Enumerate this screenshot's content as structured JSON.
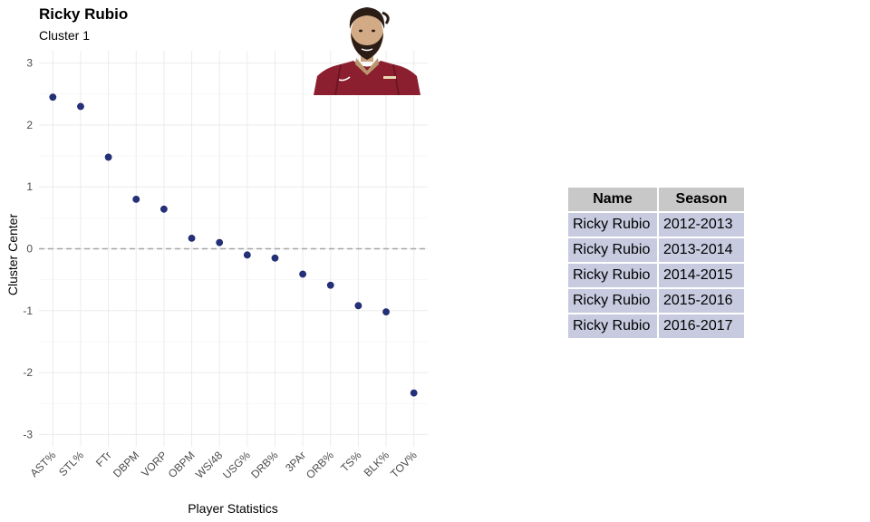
{
  "header": {
    "title": "Ricky Rubio",
    "subtitle": "Cluster 1"
  },
  "photo": {
    "icon": "player-headshot-icon",
    "jersey_color": "#8b1f2f"
  },
  "chart_data": {
    "type": "scatter",
    "categories": [
      "AST%",
      "STL%",
      "FTr",
      "DBPM",
      "VORP",
      "OBPM",
      "WS/48",
      "USG%",
      "DRB%",
      "3PAr",
      "ORB%",
      "TS%",
      "BLK%",
      "TOV%"
    ],
    "values": [
      2.45,
      2.3,
      1.48,
      0.8,
      0.64,
      0.17,
      0.1,
      -0.1,
      -0.15,
      -0.41,
      -0.59,
      -0.92,
      -1.02,
      -2.33
    ],
    "xlabel": "Player Statistics",
    "ylabel": "Cluster Center",
    "ylim": [
      -3.2,
      3.2
    ],
    "yticks": [
      -3,
      -2,
      -1,
      0,
      1,
      2,
      3
    ],
    "yticklabels": [
      "-3",
      "-2",
      "-1",
      "0",
      "1",
      "2",
      "3"
    ],
    "reference_line": 0,
    "grid": true,
    "point_color": "#24317a",
    "reference_color": "#a6a6a6"
  },
  "table": {
    "headers": [
      "Name",
      "Season"
    ],
    "rows": [
      [
        "Ricky Rubio",
        "2012-2013"
      ],
      [
        "Ricky Rubio",
        "2013-2014"
      ],
      [
        "Ricky Rubio",
        "2014-2015"
      ],
      [
        "Ricky Rubio",
        "2015-2016"
      ],
      [
        "Ricky Rubio",
        "2016-2017"
      ]
    ]
  }
}
